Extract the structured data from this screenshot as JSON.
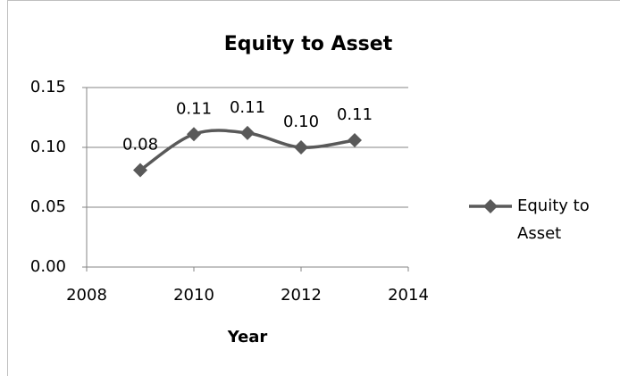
{
  "chart_data": {
    "type": "line",
    "title": "Equity to  Asset",
    "x_label": "Year",
    "x": [
      2009,
      2010,
      2011,
      2012,
      2013
    ],
    "series": [
      {
        "name": "Equity to Asset",
        "color": "#595959",
        "values": [
          0.081,
          0.111,
          0.112,
          0.1,
          0.106
        ],
        "value_labels": [
          "0.08",
          "0.11",
          "0.11",
          "0.10",
          "0.11"
        ]
      }
    ],
    "xlim": [
      2008,
      2014
    ],
    "xticks": [
      2008,
      2010,
      2012,
      2014
    ],
    "ylim": [
      0,
      0.15
    ],
    "yticks": [
      {
        "value": 0,
        "label": "0.00"
      },
      {
        "value": 0.05,
        "label": "0.05"
      },
      {
        "value": 0.1,
        "label": "0.10"
      },
      {
        "value": 0.15,
        "label": "0.15"
      }
    ],
    "grid": true,
    "legend": "right"
  }
}
